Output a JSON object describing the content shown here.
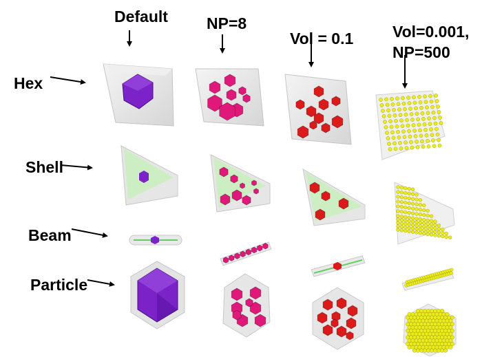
{
  "column_labels": [
    "Default",
    "NP=8",
    "Vol = 0.1",
    "Vol=0.001,",
    "NP=500"
  ],
  "row_labels": [
    "Hex",
    "Shell",
    "Beam",
    "Particle"
  ],
  "colors": {
    "default": "#7b22c9",
    "np8": "#e0187a",
    "vol01": "#dd1a1a",
    "np500": "#ecec1a",
    "shell_fill": "#cdeec2",
    "container": "#e3e3e3"
  }
}
